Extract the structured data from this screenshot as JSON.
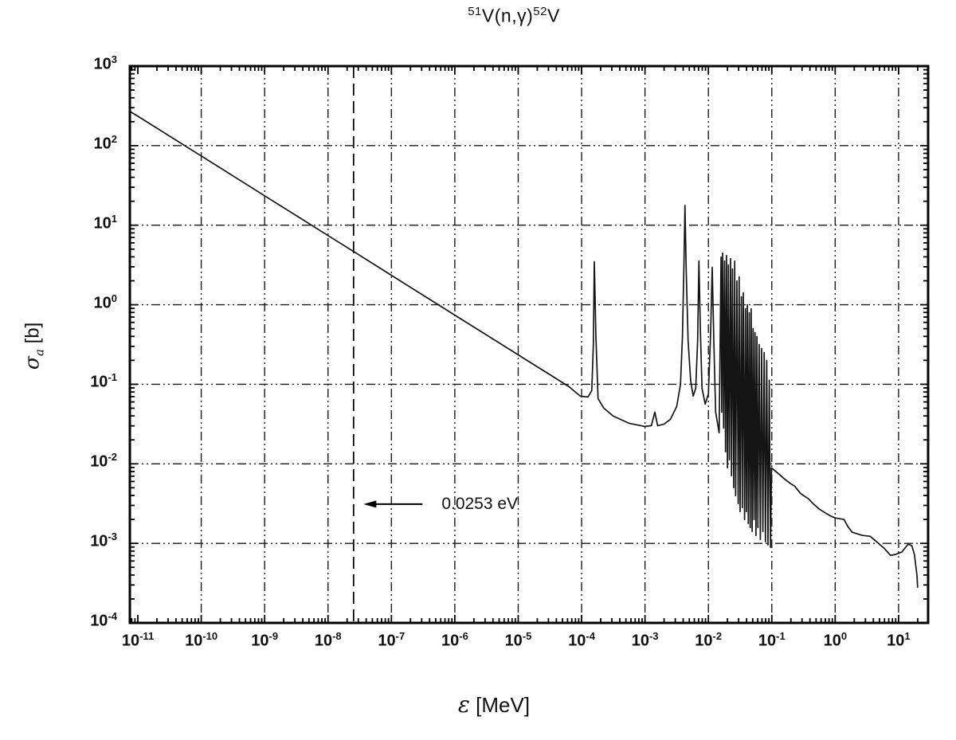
{
  "title": {
    "sup_left": "51",
    "body": "V(n,γ)",
    "sup_right": "52",
    "tail": "V"
  },
  "axes": {
    "y_label": {
      "symbol": "σ",
      "subscript": "a",
      "unit": " [b]"
    },
    "x_label": {
      "symbol": "ε",
      "unit": " [MeV]"
    },
    "tick_base": "10",
    "x_tick_exponents": [
      -11,
      -10,
      -9,
      -8,
      -7,
      -6,
      -5,
      -4,
      -3,
      -2,
      -1,
      0,
      1
    ],
    "y_tick_exponents": [
      3,
      2,
      1,
      0,
      -1,
      -2,
      -3,
      -4
    ]
  },
  "annotation": {
    "text": "0.0253 eV",
    "marker_logE": -7.597,
    "arrow_tip_logE": -7.44,
    "arrow_tail_logE": -6.51,
    "arrow_logSigma": -2.507
  },
  "colors": {
    "background": "#ffffff",
    "frame": "#000000",
    "grid": "#1a1a1a",
    "curve": "#141414",
    "text": "#111111"
  },
  "chart_data": {
    "type": "line",
    "title": "51V(n,gamma)52V neutron absorption cross section",
    "xlabel": "ε [MeV]",
    "ylabel": "σ_a [b]",
    "x_scale": "log",
    "y_scale": "log",
    "x_range_log": [
      -11.126,
      1.466
    ],
    "y_range_log": [
      -4,
      3
    ],
    "grid": "dash-dot, every decade",
    "legend": "none",
    "thermal_marker": {
      "label": "0.0253 eV",
      "logE": -7.597,
      "style": "vertical dashed line"
    },
    "series": [
      {
        "name": "sigma_a(E)",
        "points_log10": [
          [
            -11.126,
            2.43
          ],
          [
            -11,
            2.37
          ],
          [
            -10,
            1.87
          ],
          [
            -9,
            1.37
          ],
          [
            -8,
            0.87
          ],
          [
            -7.597,
            0.67
          ],
          [
            -7,
            0.37
          ],
          [
            -6,
            -0.13
          ],
          [
            -5,
            -0.63
          ],
          [
            -4.5,
            -0.88
          ],
          [
            -4.2,
            -1.03
          ],
          [
            -4.02,
            -1.15
          ],
          [
            -3.9,
            -1.16
          ],
          [
            -3.84,
            -1.08
          ],
          [
            -3.815,
            -0.5
          ],
          [
            -3.8,
            0.54
          ],
          [
            -3.775,
            -0.4
          ],
          [
            -3.74,
            -1.18
          ],
          [
            -3.65,
            -1.3
          ],
          [
            -3.5,
            -1.4
          ],
          [
            -3.25,
            -1.49
          ],
          [
            -3.0,
            -1.53
          ],
          [
            -2.9,
            -1.52
          ],
          [
            -2.845,
            -1.35
          ],
          [
            -2.8,
            -1.52
          ],
          [
            -2.7,
            -1.5
          ],
          [
            -2.6,
            -1.44
          ],
          [
            -2.5,
            -1.28
          ],
          [
            -2.44,
            -1.0
          ],
          [
            -2.41,
            -0.4
          ],
          [
            -2.385,
            0.55
          ],
          [
            -2.37,
            1.25
          ],
          [
            -2.35,
            0.45
          ],
          [
            -2.32,
            -0.45
          ],
          [
            -2.28,
            -0.95
          ],
          [
            -2.24,
            -1.15
          ],
          [
            -2.2,
            -1.05
          ],
          [
            -2.17,
            -0.45
          ],
          [
            -2.15,
            0.55
          ],
          [
            -2.125,
            -0.35
          ],
          [
            -2.1,
            -1.05
          ],
          [
            -2.05,
            -1.25
          ],
          [
            -2.0,
            -1.12
          ],
          [
            -1.965,
            -0.35
          ],
          [
            -1.94,
            0.47
          ],
          [
            -1.915,
            -0.45
          ],
          [
            -1.885,
            -1.35
          ],
          [
            -1.83,
            -1.61
          ],
          [
            -1.8,
            0.6
          ],
          [
            -1.79,
            -1.35
          ],
          [
            -1.775,
            0.65
          ],
          [
            -1.76,
            -1.55
          ],
          [
            -1.745,
            0.55
          ],
          [
            -1.73,
            -1.85
          ],
          [
            -1.715,
            0.62
          ],
          [
            -1.7,
            -2.05
          ],
          [
            -1.685,
            0.5
          ],
          [
            -1.67,
            -1.95
          ],
          [
            -1.65,
            0.58
          ],
          [
            -1.635,
            -2.15
          ],
          [
            -1.62,
            0.45
          ],
          [
            -1.6,
            -2.3
          ],
          [
            -1.585,
            0.55
          ],
          [
            -1.57,
            -2.4
          ],
          [
            -1.55,
            0.3
          ],
          [
            -1.53,
            -2.5
          ],
          [
            -1.515,
            0.35
          ],
          [
            -1.5,
            -2.6
          ],
          [
            -1.48,
            0.1
          ],
          [
            -1.465,
            -2.55
          ],
          [
            -1.45,
            0.15
          ],
          [
            -1.43,
            -2.7
          ],
          [
            -1.415,
            -0.05
          ],
          [
            -1.4,
            -2.6
          ],
          [
            -1.385,
            0.0
          ],
          [
            -1.37,
            -2.75
          ],
          [
            -1.355,
            -0.1
          ],
          [
            -1.34,
            -2.8
          ],
          [
            -1.325,
            -0.05
          ],
          [
            -1.31,
            -2.85
          ],
          [
            -1.295,
            -0.3
          ],
          [
            -1.28,
            -2.7
          ],
          [
            -1.265,
            -0.35
          ],
          [
            -1.25,
            -2.9
          ],
          [
            -1.235,
            -0.4
          ],
          [
            -1.22,
            -2.8
          ],
          [
            -1.2,
            -0.5
          ],
          [
            -1.18,
            -2.95
          ],
          [
            -1.16,
            -0.55
          ],
          [
            -1.14,
            -2.85
          ],
          [
            -1.12,
            -0.6
          ],
          [
            -1.1,
            -2.98
          ],
          [
            -1.08,
            -0.7
          ],
          [
            -1.06,
            -3.02
          ],
          [
            -1.04,
            -0.95
          ],
          [
            -1.02,
            -3.05
          ],
          [
            -1.005,
            -2.05
          ],
          [
            -0.9,
            -2.12
          ],
          [
            -0.8,
            -2.19
          ],
          [
            -0.7,
            -2.25
          ],
          [
            -0.64,
            -2.28
          ],
          [
            -0.55,
            -2.37
          ],
          [
            -0.48,
            -2.41
          ],
          [
            -0.42,
            -2.44
          ],
          [
            -0.35,
            -2.5
          ],
          [
            -0.25,
            -2.57
          ],
          [
            -0.15,
            -2.62
          ],
          [
            -0.06,
            -2.66
          ],
          [
            0.0,
            -2.68
          ],
          [
            0.14,
            -2.7
          ],
          [
            0.2,
            -2.79
          ],
          [
            0.27,
            -2.86
          ],
          [
            0.43,
            -2.9
          ],
          [
            0.55,
            -2.91
          ],
          [
            0.61,
            -2.95
          ],
          [
            0.77,
            -3.06
          ],
          [
            0.87,
            -3.15
          ],
          [
            0.95,
            -3.14
          ],
          [
            1.05,
            -3.11
          ],
          [
            1.15,
            -3.01
          ],
          [
            1.21,
            -3.03
          ],
          [
            1.25,
            -3.14
          ],
          [
            1.29,
            -3.4
          ],
          [
            1.3,
            -3.55
          ]
        ]
      }
    ]
  }
}
